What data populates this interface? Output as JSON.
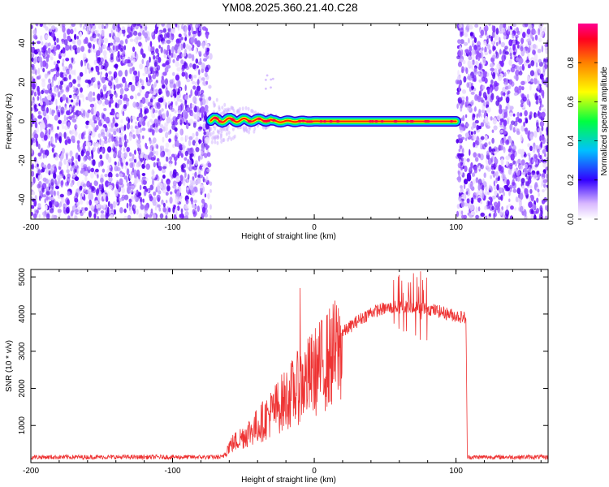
{
  "title": "YM08.2025.360.21.40.C28",
  "chart_data": [
    {
      "type": "heatmap",
      "name": "spectrogram",
      "xlabel": "Height of straight line (km)",
      "ylabel": "Frequency (Hz)",
      "xlim": [
        -200,
        165
      ],
      "ylim": [
        -50,
        50
      ],
      "xticks": [
        -200,
        -100,
        0,
        100
      ],
      "yticks": [
        -40,
        -20,
        0,
        20,
        40
      ],
      "noise_regions_km": [
        [
          -200,
          -73
        ],
        [
          101,
          165
        ]
      ],
      "signal_region_km": [
        -73,
        101
      ],
      "signal_center_hz": 0,
      "colorbar": {
        "label": "Normalized spectral amplitude",
        "range": [
          0,
          1
        ],
        "ticks": [
          0.0,
          0.2,
          0.4,
          0.6,
          0.8
        ],
        "tick_labels": [
          "0.0",
          "0.2",
          "0.4",
          "0.6",
          "0.8"
        ]
      }
    },
    {
      "type": "line",
      "name": "snr",
      "xlabel": "Height of straight line (km)",
      "ylabel": "SNR (10 * v/v)",
      "xlim": [
        -200,
        165
      ],
      "ylim": [
        0,
        5200
      ],
      "xticks": [
        -200,
        -100,
        0,
        100
      ],
      "yticks": [
        1000,
        2000,
        3000,
        4000,
        5000
      ],
      "color": "#ee3333",
      "noise_level": 150,
      "series_envelope": {
        "x": [
          -200,
          -65,
          -60,
          -50,
          -40,
          -30,
          -20,
          -10,
          0,
          10,
          20,
          30,
          40,
          50,
          60,
          70,
          80,
          90,
          100,
          107,
          108,
          165
        ],
        "y": [
          150,
          150,
          500,
          800,
          1100,
          1500,
          1900,
          2300,
          2700,
          3100,
          3500,
          3800,
          4050,
          4150,
          4200,
          4200,
          4150,
          4050,
          3950,
          3900,
          150,
          150
        ]
      },
      "peaks": [
        {
          "x": -10,
          "y": 4700
        },
        {
          "x": 70,
          "y": 5100
        },
        {
          "x": 75,
          "y": 5150
        }
      ]
    }
  ]
}
